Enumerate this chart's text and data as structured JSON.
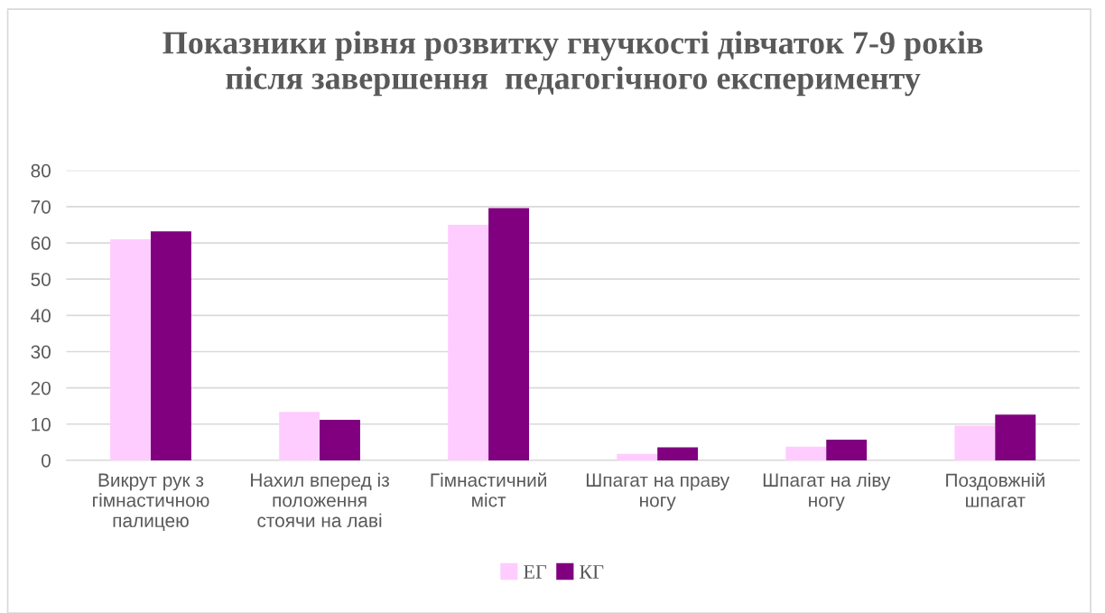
{
  "chart_data": {
    "type": "bar",
    "title": "Показники рівня розвитку гнучкості дівчаток 7-9 років\nпісля завершення  педагогічного експерименту",
    "categories": [
      "Викрут рук з\nгімнастичною\nпалицею",
      "Нахил вперед із\nположення\nстоячи на лаві",
      "Гімнастичний\nміст",
      "Шпагат на праву\nногу",
      "Шпагат на ліву\nногу",
      "Поздовжній\nшпагат"
    ],
    "series": [
      {
        "name": "ЕГ",
        "color": "#ffccff",
        "values": [
          61,
          13.4,
          65,
          1.8,
          3.8,
          9.6
        ]
      },
      {
        "name": "КГ",
        "color": "#800080",
        "values": [
          63.2,
          11.2,
          69.6,
          3.6,
          5.7,
          12.6
        ]
      }
    ],
    "ylim": [
      0,
      80
    ],
    "yticks": [
      0,
      10,
      20,
      30,
      40,
      50,
      60,
      70,
      80
    ],
    "grid": "y",
    "legend": "bottom"
  }
}
